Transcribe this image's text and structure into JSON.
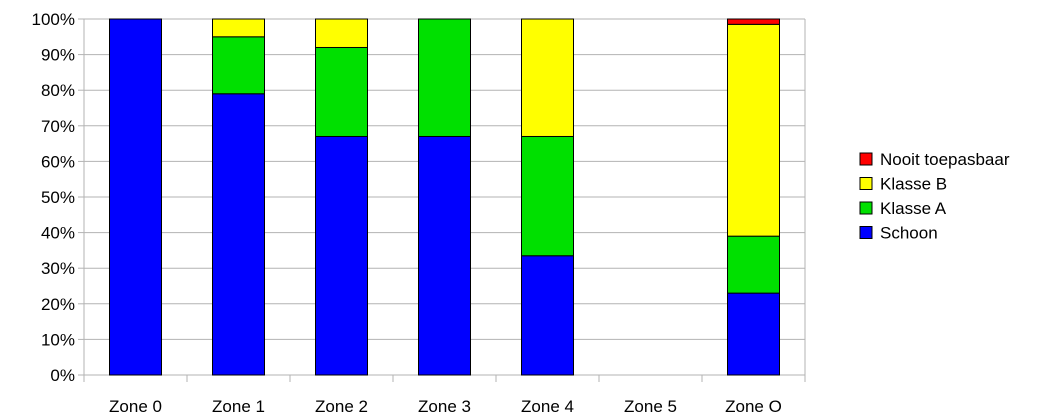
{
  "chart_data": {
    "type": "bar",
    "stacked": true,
    "percent_stacked": true,
    "categories": [
      "Zone 0",
      "Zone 1",
      "Zone 2",
      "Zone 3",
      "Zone 4",
      "Zone 5",
      "Zone O"
    ],
    "series": [
      {
        "name": "Schoon",
        "color": "#0000ff",
        "values": [
          100,
          79,
          67,
          67,
          33.5,
          0,
          23
        ]
      },
      {
        "name": "Klasse A",
        "color": "#00e000",
        "values": [
          0,
          16,
          25,
          33,
          33.5,
          0,
          16
        ]
      },
      {
        "name": "Klasse B",
        "color": "#ffff00",
        "values": [
          0,
          5,
          8,
          0,
          33,
          0,
          59.5
        ]
      },
      {
        "name": "Nooit toepasbaar",
        "color": "#ff0000",
        "values": [
          0,
          0,
          0,
          0,
          0,
          0,
          1.5
        ]
      }
    ],
    "y_ticks": [
      "0%",
      "10%",
      "20%",
      "30%",
      "40%",
      "50%",
      "60%",
      "70%",
      "80%",
      "90%",
      "100%"
    ],
    "ylim": [
      0,
      100
    ],
    "grid": true,
    "legend_position": "right",
    "legend_order": [
      "Nooit toepasbaar",
      "Klasse B",
      "Klasse A",
      "Schoon"
    ]
  }
}
